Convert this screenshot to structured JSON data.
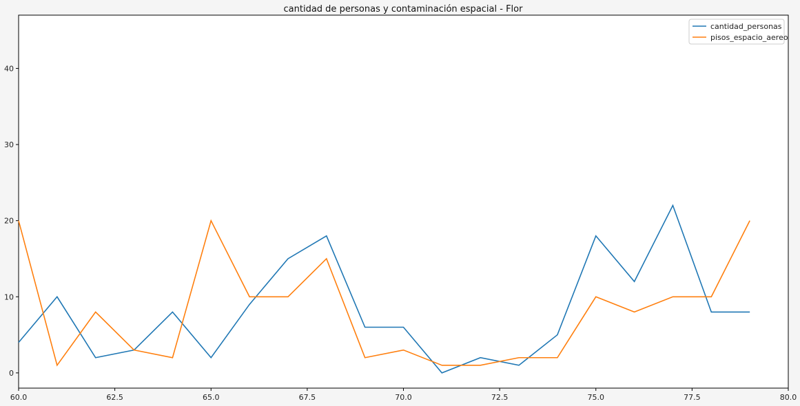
{
  "chart_data": {
    "type": "line",
    "title": "cantidad de personas y contaminación espacial - Flor",
    "xlabel": "",
    "ylabel": "",
    "xlim": [
      60,
      80
    ],
    "ylim": [
      -2,
      47
    ],
    "xticks": [
      60.0,
      62.5,
      65.0,
      67.5,
      70.0,
      72.5,
      75.0,
      77.5,
      80.0
    ],
    "xtick_labels": [
      "60.0",
      "62.5",
      "65.0",
      "67.5",
      "70.0",
      "72.5",
      "75.0",
      "77.5",
      "80.0"
    ],
    "yticks": [
      0,
      10,
      20,
      30,
      40
    ],
    "ytick_labels": [
      "0",
      "10",
      "20",
      "30",
      "40"
    ],
    "grid": false,
    "legend_position": "top-right",
    "x": [
      60,
      61,
      62,
      63,
      64,
      65,
      66,
      67,
      68,
      69,
      70,
      71,
      72,
      73,
      74,
      75,
      76,
      77,
      78,
      79
    ],
    "series": [
      {
        "name": "cantidad_personas",
        "color": "#1f77b4",
        "values": [
          4,
          10,
          2,
          3,
          8,
          2,
          9,
          15,
          18,
          6,
          6,
          0,
          2,
          1,
          5,
          18,
          12,
          22,
          8,
          8
        ]
      },
      {
        "name": "pisos_espacio_aereo",
        "color": "#ff7f0e",
        "values": [
          20,
          1,
          8,
          3,
          2,
          20,
          10,
          10,
          15,
          2,
          3,
          1,
          1,
          2,
          2,
          10,
          8,
          10,
          10,
          20
        ]
      }
    ]
  }
}
